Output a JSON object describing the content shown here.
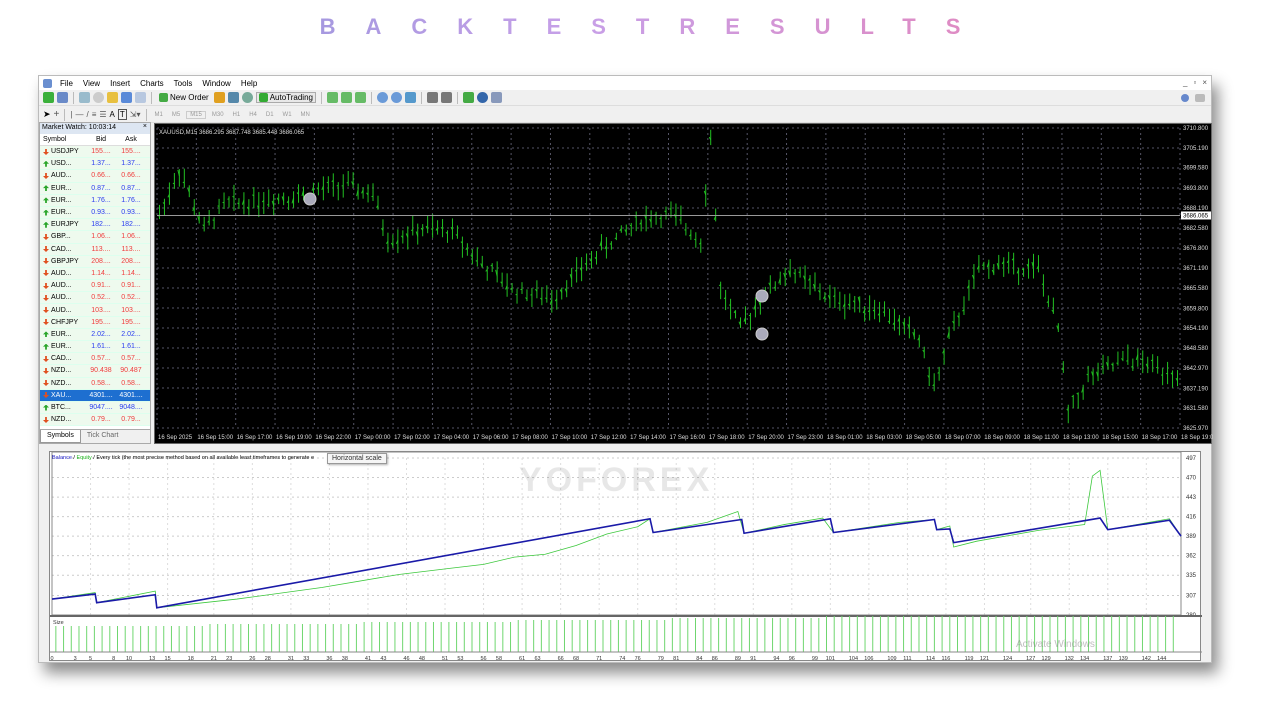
{
  "page_title": "BACKTESTRESULTS",
  "menu": [
    "File",
    "View",
    "Insert",
    "Charts",
    "Tools",
    "Window",
    "Help"
  ],
  "window_buttons": [
    "_",
    "▫",
    "×"
  ],
  "toolbar": {
    "new_order": "New Order",
    "autotrading": "AutoTrading"
  },
  "toolbar2_tools": [
    "A",
    "T"
  ],
  "timeframes": [
    "M1",
    "M5",
    "M15",
    "M30",
    "H1",
    "H4",
    "D1",
    "W1",
    "MN"
  ],
  "market_watch": {
    "title": "Market Watch: 10:03:14",
    "close": "×",
    "columns": [
      "Symbol",
      "Bid",
      "Ask"
    ],
    "rows": [
      {
        "s": "USDJPY",
        "b": "155....",
        "a": "155....",
        "d": "dn"
      },
      {
        "s": "USD...",
        "b": "1.37...",
        "a": "1.37...",
        "d": "up"
      },
      {
        "s": "AUD...",
        "b": "0.66...",
        "a": "0.66...",
        "d": "dn"
      },
      {
        "s": "EUR...",
        "b": "0.87...",
        "a": "0.87...",
        "d": "up"
      },
      {
        "s": "EUR...",
        "b": "1.76...",
        "a": "1.76...",
        "d": "up"
      },
      {
        "s": "EUR...",
        "b": "0.93...",
        "a": "0.93...",
        "d": "up"
      },
      {
        "s": "EURJPY",
        "b": "182....",
        "a": "182....",
        "d": "up"
      },
      {
        "s": "GBP...",
        "b": "1.06...",
        "a": "1.06...",
        "d": "dn"
      },
      {
        "s": "CAD...",
        "b": "113....",
        "a": "113....",
        "d": "dn"
      },
      {
        "s": "GBPJPY",
        "b": "208....",
        "a": "208....",
        "d": "dn"
      },
      {
        "s": "AUD...",
        "b": "1.14...",
        "a": "1.14...",
        "d": "dn"
      },
      {
        "s": "AUD...",
        "b": "0.91...",
        "a": "0.91...",
        "d": "dn"
      },
      {
        "s": "AUD...",
        "b": "0.52...",
        "a": "0.52...",
        "d": "dn"
      },
      {
        "s": "AUD...",
        "b": "103....",
        "a": "103....",
        "d": "dn"
      },
      {
        "s": "CHFJPY",
        "b": "195....",
        "a": "195....",
        "d": "dn"
      },
      {
        "s": "EUR...",
        "b": "2.02...",
        "a": "2.02...",
        "d": "up"
      },
      {
        "s": "EUR...",
        "b": "1.61...",
        "a": "1.61...",
        "d": "up"
      },
      {
        "s": "CAD...",
        "b": "0.57...",
        "a": "0.57...",
        "d": "dn"
      },
      {
        "s": "NZD...",
        "b": "90.438",
        "a": "90.487",
        "d": "dn"
      },
      {
        "s": "NZD...",
        "b": "0.58...",
        "a": "0.58...",
        "d": "dn"
      },
      {
        "s": "XAU...",
        "b": "4301....",
        "a": "4301....",
        "d": "dn",
        "selected": true
      },
      {
        "s": "BTC...",
        "b": "9047....",
        "a": "9048....",
        "d": "up"
      },
      {
        "s": "NZD...",
        "b": "0.79...",
        "a": "0.79...",
        "d": "dn"
      }
    ],
    "tabs": [
      "Symbols",
      "Tick Chart"
    ]
  },
  "chart_data": [
    {
      "type": "candlestick",
      "header": "XAUUSD,M15  3686.295 3687.748 3685.448 3686.065",
      "current_price": "3686.065",
      "price_ticks": [
        "3710.800",
        "3705.190",
        "3699.580",
        "3693.800",
        "3688.190",
        "3682.580",
        "3676.800",
        "3671.190",
        "3665.580",
        "3659.800",
        "3654.190",
        "3648.580",
        "3642.970",
        "3637.190",
        "3631.580",
        "3625.970"
      ],
      "ylim": [
        3625.97,
        3710.8
      ],
      "time_ticks": [
        "16 Sep 2025",
        "16 Sep 15:00",
        "16 Sep 17:00",
        "16 Sep 19:00",
        "16 Sep 22:00",
        "17 Sep 00:00",
        "17 Sep 02:00",
        "17 Sep 04:00",
        "17 Sep 06:00",
        "17 Sep 08:00",
        "17 Sep 10:00",
        "17 Sep 12:00",
        "17 Sep 14:00",
        "17 Sep 16:00",
        "17 Sep 18:00",
        "17 Sep 20:00",
        "17 Sep 23:00",
        "18 Sep 01:00",
        "18 Sep 03:00",
        "18 Sep 05:00",
        "18 Sep 07:00",
        "18 Sep 09:00",
        "18 Sep 11:00",
        "18 Sep 13:00",
        "18 Sep 15:00",
        "18 Sep 17:00",
        "18 Sep 19:00"
      ],
      "price_path": [
        [
          0,
          3686.4
        ],
        [
          4,
          3699
        ],
        [
          9,
          3682.1
        ],
        [
          13,
          3689.2
        ],
        [
          29,
          3692
        ],
        [
          37,
          3694.8
        ],
        [
          43,
          3692
        ],
        [
          46,
          3679.3
        ],
        [
          53,
          3682.1
        ],
        [
          59,
          3681.6
        ],
        [
          65,
          3672.3
        ],
        [
          71,
          3665.3
        ],
        [
          79,
          3662.5
        ],
        [
          89,
          3676.5
        ],
        [
          97,
          3685
        ],
        [
          103,
          3686.4
        ],
        [
          109,
          3679.3
        ],
        [
          111,
          3707.4
        ],
        [
          113,
          3665.3
        ],
        [
          117,
          3654
        ],
        [
          121,
          3662.5
        ],
        [
          127,
          3670.9
        ],
        [
          135,
          3662.5
        ],
        [
          145,
          3659.7
        ],
        [
          153,
          3651.2
        ],
        [
          156,
          3637.2
        ],
        [
          159,
          3651.2
        ],
        [
          165,
          3670.9
        ],
        [
          169,
          3672.3
        ],
        [
          177,
          3670.9
        ],
        [
          181,
          3654
        ],
        [
          183,
          3630.2
        ],
        [
          187,
          3640
        ],
        [
          195,
          3645.6
        ],
        [
          205,
          3641.4
        ]
      ],
      "candle_color": "#22c022"
    },
    {
      "type": "line",
      "legend": {
        "balance": "Balance",
        "equity": "Equity",
        "sep": " / ",
        "description": " / Every tick (the most precise method based on all available least timeframes to generate e"
      },
      "y_ticks": [
        497,
        470,
        443,
        416,
        389,
        362,
        335,
        307,
        280
      ],
      "ylim": [
        280,
        497
      ],
      "x_ticks": [
        0,
        3,
        5,
        8,
        10,
        13,
        15,
        18,
        21,
        23,
        26,
        28,
        31,
        33,
        36,
        38,
        41,
        43,
        46,
        48,
        51,
        53,
        56,
        58,
        61,
        63,
        66,
        68,
        71,
        74,
        76,
        79,
        81,
        84,
        86,
        89,
        91,
        94,
        96,
        99,
        101,
        104,
        106,
        109,
        111,
        114,
        116,
        119,
        121,
        124,
        127,
        129,
        132,
        134,
        137,
        139,
        142,
        144
      ],
      "xlim": [
        0,
        146.5
      ],
      "series": [
        {
          "name": "Balance",
          "color": "#1a1aa8",
          "points": [
            [
              0,
              302
            ],
            [
              5.6,
              309
            ],
            [
              5.8,
              297
            ],
            [
              13.4,
              308
            ],
            [
              13.6,
              290
            ],
            [
              77.6,
              413
            ],
            [
              78,
              394
            ],
            [
              89.5,
              412
            ],
            [
              89.8,
              393
            ],
            [
              101,
              413
            ],
            [
              101.4,
              394
            ],
            [
              114.5,
              412
            ],
            [
              114.8,
              398
            ],
            [
              116.5,
              399
            ],
            [
              117,
              380
            ],
            [
              136,
              414
            ],
            [
              137,
              398
            ],
            [
              145,
              411
            ],
            [
              146.5,
              389
            ]
          ]
        },
        {
          "name": "Equity",
          "color": "#3cc83c",
          "points": [
            [
              0,
              302
            ],
            [
              5.6,
              311
            ],
            [
              5.8,
              297
            ],
            [
              13.4,
              313
            ],
            [
              13.6,
              290
            ],
            [
              24,
              302
            ],
            [
              35,
              318
            ],
            [
              45,
              336
            ],
            [
              52,
              345
            ],
            [
              56,
              350
            ],
            [
              60,
              360
            ],
            [
              64,
              364
            ],
            [
              68,
              376
            ],
            [
              72,
              392
            ],
            [
              76,
              402
            ],
            [
              77.6,
              413
            ],
            [
              78,
              394
            ],
            [
              85,
              408
            ],
            [
              89,
              423
            ],
            [
              89.8,
              393
            ],
            [
              95,
              405
            ],
            [
              100,
              414
            ],
            [
              101.4,
              394
            ],
            [
              110,
              408
            ],
            [
              114.5,
              412
            ],
            [
              114.8,
              398
            ],
            [
              116.5,
              403
            ],
            [
              117,
              374
            ],
            [
              120,
              382
            ],
            [
              128,
              397
            ],
            [
              134,
              405
            ],
            [
              135,
              472
            ],
            [
              136,
              480
            ],
            [
              137,
              398
            ],
            [
              145,
              413
            ],
            [
              146.5,
              389
            ]
          ]
        }
      ]
    },
    {
      "type": "bar",
      "label": "Size",
      "color": "#6fd66f"
    }
  ],
  "tooltip": "Horizontal scale",
  "watermark": "YOFOREX",
  "activate": "Activate Windows"
}
